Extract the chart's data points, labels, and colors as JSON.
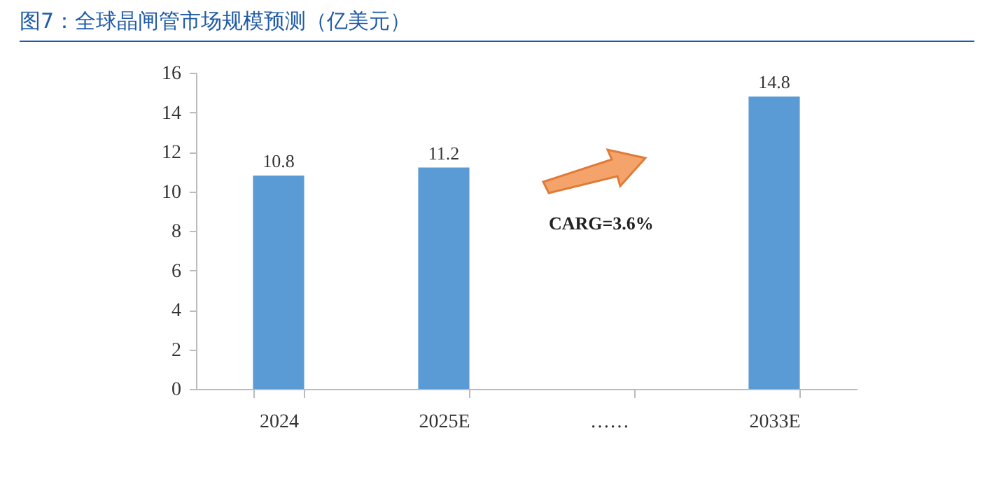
{
  "chart_data": {
    "type": "bar",
    "title": "图7：全球晶闸管市场规模预测（亿美元）",
    "categories": [
      "2024",
      "2025E",
      "……",
      "2033E"
    ],
    "values": [
      10.8,
      11.2,
      null,
      14.8
    ],
    "color": "#5b9bd5",
    "ylim": [
      0,
      16
    ],
    "yticks": [
      0,
      2,
      4,
      6,
      8,
      10,
      12,
      14,
      16
    ],
    "grid": false,
    "data_labels": true,
    "annotations": [
      "CARG=3.6%"
    ]
  }
}
